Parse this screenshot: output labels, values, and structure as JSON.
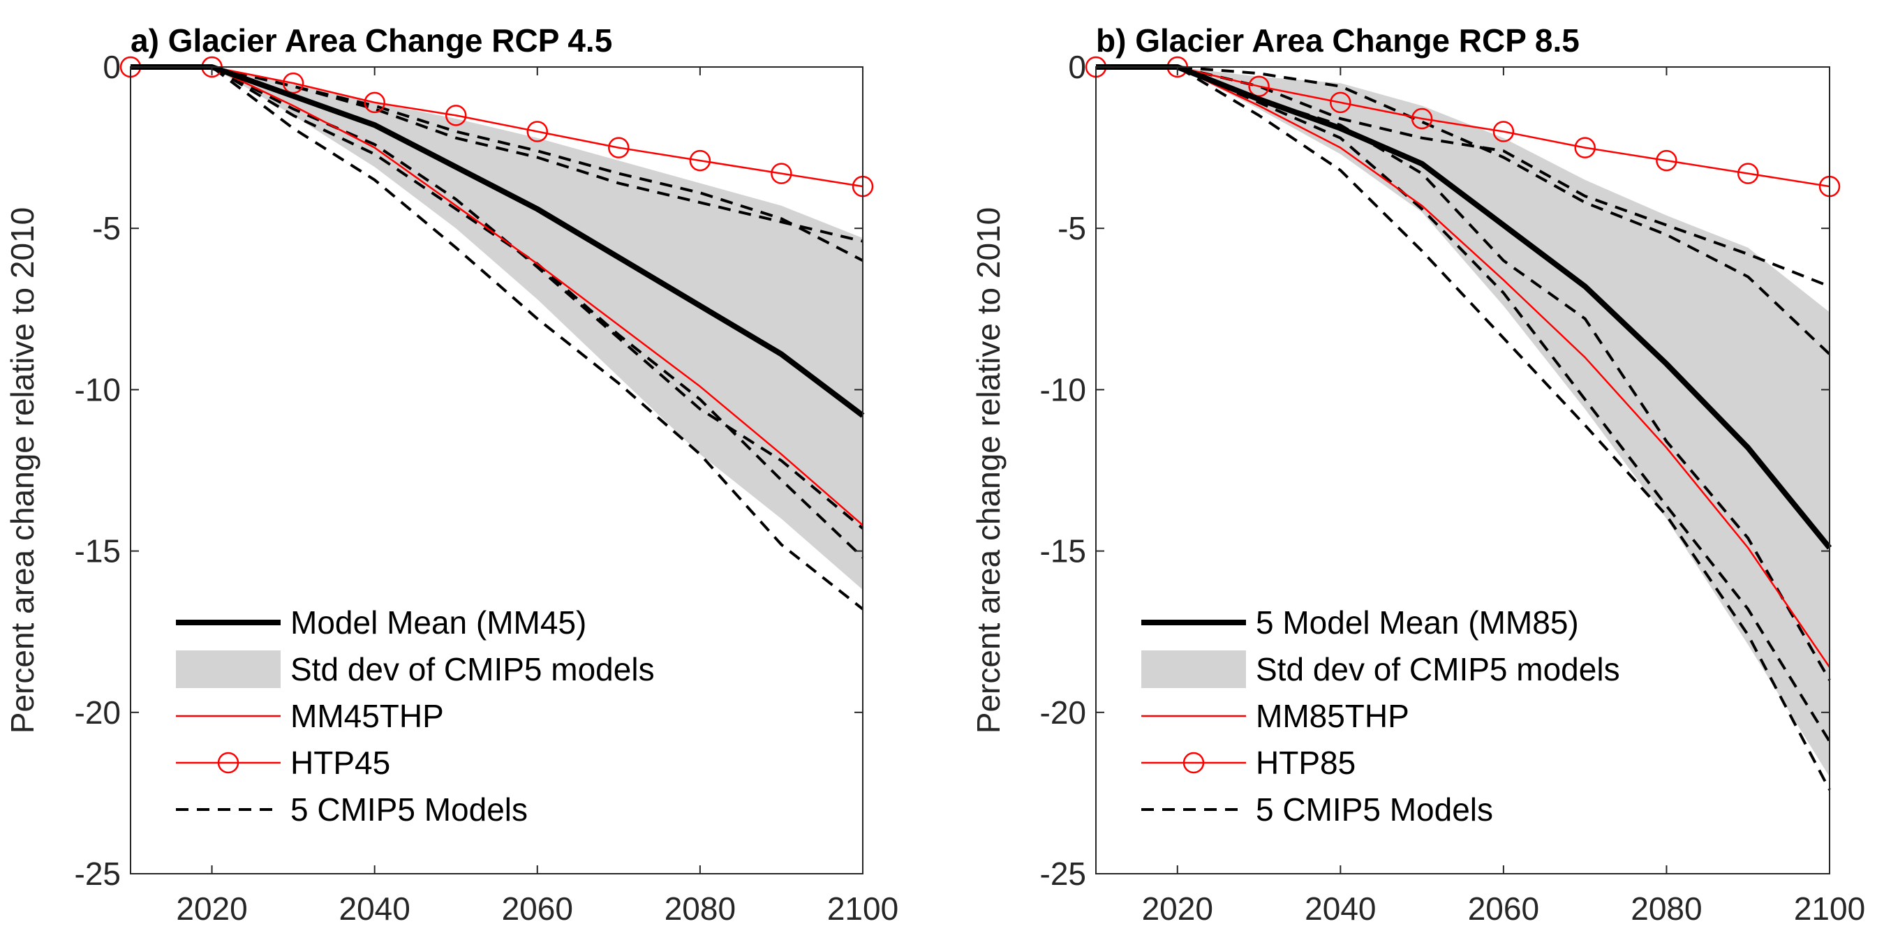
{
  "chart_data": [
    {
      "type": "line",
      "title": "a) Glacier Area Change RCP 4.5",
      "xlabel": "",
      "ylabel": "Percent area change relative to 2010",
      "xlim": [
        2010,
        2100
      ],
      "ylim": [
        -25,
        0
      ],
      "xticks": [
        2020,
        2040,
        2060,
        2080,
        2100
      ],
      "yticks": [
        0,
        -5,
        -10,
        -15,
        -20,
        -25
      ],
      "legend_position": "lower-left",
      "x": [
        2010,
        2020,
        2030,
        2040,
        2050,
        2060,
        2070,
        2080,
        2090,
        2100
      ],
      "std_band": {
        "name": "Std dev of CMIP5 models",
        "color": "#d3d3d3",
        "upper": [
          0,
          0,
          -0.5,
          -1.1,
          -1.6,
          -2.2,
          -2.9,
          -3.6,
          -4.3,
          -5.3
        ],
        "lower": [
          0,
          0,
          -1.5,
          -3.1,
          -5.0,
          -7.2,
          -9.6,
          -12.0,
          -14.0,
          -16.2
        ]
      },
      "series": [
        {
          "name": "Model Mean (MM45)",
          "style": "mean",
          "color": "#000000",
          "values": [
            0,
            0,
            -0.9,
            -1.8,
            -3.1,
            -4.4,
            -5.9,
            -7.4,
            -8.9,
            -10.8
          ]
        },
        {
          "name": "MM45THP",
          "style": "thin",
          "color": "#ff0000",
          "values": [
            0,
            0,
            -1.2,
            -2.5,
            -4.3,
            -6.1,
            -8.0,
            -9.9,
            -12.0,
            -14.2
          ]
        },
        {
          "name": "HTP45",
          "style": "circle",
          "color": "#ff0000",
          "values": [
            0,
            0,
            -0.5,
            -1.1,
            -1.5,
            -2.0,
            -2.5,
            -2.9,
            -3.3,
            -3.7
          ]
        },
        {
          "name": "5 CMIP5 Models",
          "style": "dashed",
          "color": "#000000",
          "values": [
            0,
            0,
            -1.9,
            -3.5,
            -5.6,
            -7.8,
            -9.8,
            -12.0,
            -14.8,
            -16.8
          ]
        },
        {
          "name": "",
          "style": "dashed",
          "color": "#000000",
          "values": [
            0,
            0,
            -1.5,
            -2.7,
            -4.4,
            -6.1,
            -8.3,
            -10.3,
            -12.8,
            -15.2
          ]
        },
        {
          "name": "",
          "style": "dashed",
          "color": "#000000",
          "values": [
            0,
            0,
            -1.3,
            -2.4,
            -4.1,
            -6.2,
            -8.4,
            -10.6,
            -12.2,
            -14.3
          ]
        },
        {
          "name": "",
          "style": "dashed",
          "color": "#000000",
          "values": [
            0,
            0,
            -0.6,
            -1.2,
            -2.0,
            -2.6,
            -3.3,
            -3.9,
            -4.7,
            -6.0
          ]
        },
        {
          "name": "",
          "style": "dashed",
          "color": "#000000",
          "values": [
            0,
            0,
            -0.6,
            -1.3,
            -2.2,
            -2.8,
            -3.6,
            -4.2,
            -4.8,
            -5.4
          ]
        }
      ]
    },
    {
      "type": "line",
      "title": "b) Glacier Area Change RCP 8.5",
      "xlabel": "",
      "ylabel": "Percent area change relative to 2010",
      "xlim": [
        2010,
        2100
      ],
      "ylim": [
        -25,
        0
      ],
      "xticks": [
        2020,
        2040,
        2060,
        2080,
        2100
      ],
      "yticks": [
        0,
        -5,
        -10,
        -15,
        -20,
        -25
      ],
      "legend_position": "lower-left",
      "x": [
        2010,
        2020,
        2030,
        2040,
        2050,
        2060,
        2070,
        2080,
        2090,
        2100
      ],
      "std_band": {
        "name": "Std dev of CMIP5 models",
        "color": "#d3d3d3",
        "upper": [
          0,
          0,
          -0.3,
          -0.5,
          -1.2,
          -2.2,
          -3.5,
          -4.6,
          -5.6,
          -7.6
        ],
        "lower": [
          0,
          0,
          -1.3,
          -2.7,
          -4.5,
          -7.4,
          -10.6,
          -14.0,
          -17.9,
          -22.0
        ]
      },
      "series": [
        {
          "name": "5 Model Mean (MM85)",
          "style": "mean",
          "color": "#000000",
          "values": [
            0,
            0,
            -1.0,
            -1.9,
            -3.0,
            -4.9,
            -6.8,
            -9.2,
            -11.8,
            -14.9
          ]
        },
        {
          "name": "MM85THP",
          "style": "thin",
          "color": "#ff0000",
          "values": [
            0,
            0,
            -1.2,
            -2.5,
            -4.3,
            -6.6,
            -9.0,
            -11.8,
            -14.9,
            -18.6
          ]
        },
        {
          "name": "HTP85",
          "style": "circle",
          "color": "#ff0000",
          "values": [
            0,
            0,
            -0.6,
            -1.1,
            -1.6,
            -2.0,
            -2.5,
            -2.9,
            -3.3,
            -3.7
          ]
        },
        {
          "name": "5 CMIP5 Models",
          "style": "dashed",
          "color": "#000000",
          "values": [
            0,
            0,
            -1.5,
            -3.2,
            -5.7,
            -8.4,
            -11.1,
            -13.9,
            -17.6,
            -22.4
          ]
        },
        {
          "name": "",
          "style": "dashed",
          "color": "#000000",
          "values": [
            0,
            0,
            -1.1,
            -2.2,
            -4.4,
            -7.0,
            -10.3,
            -13.6,
            -16.8,
            -20.9
          ]
        },
        {
          "name": "",
          "style": "dashed",
          "color": "#000000",
          "values": [
            0,
            0,
            -1.0,
            -1.8,
            -3.3,
            -6.0,
            -7.8,
            -11.6,
            -14.6,
            -19.0
          ]
        },
        {
          "name": "",
          "style": "dashed",
          "color": "#000000",
          "values": [
            0,
            0,
            -0.2,
            -0.6,
            -1.7,
            -2.8,
            -4.2,
            -5.2,
            -6.5,
            -8.9
          ]
        },
        {
          "name": "",
          "style": "dashed",
          "color": "#000000",
          "values": [
            0,
            0,
            -0.6,
            -1.6,
            -2.2,
            -2.6,
            -4.0,
            -4.9,
            -5.8,
            -6.8
          ]
        }
      ]
    }
  ]
}
